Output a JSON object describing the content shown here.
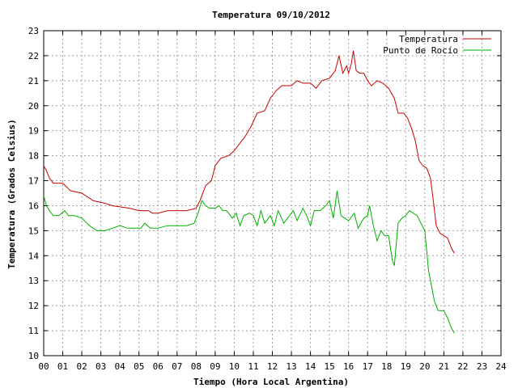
{
  "chart_data": {
    "type": "line",
    "title": "Temperatura 09/10/2012",
    "xlabel": "Tiempo (Hora Local Argentina)",
    "ylabel": "Temperatura (Grados Celsius)",
    "xlim": [
      0,
      24
    ],
    "ylim": [
      10,
      23
    ],
    "x_ticks": [
      "00",
      "01",
      "02",
      "03",
      "04",
      "05",
      "06",
      "07",
      "08",
      "09",
      "10",
      "11",
      "12",
      "13",
      "14",
      "15",
      "16",
      "17",
      "18",
      "19",
      "20",
      "21",
      "22",
      "23",
      "24"
    ],
    "y_ticks": [
      "10",
      "11",
      "12",
      "13",
      "14",
      "15",
      "16",
      "17",
      "18",
      "19",
      "20",
      "21",
      "22",
      "23"
    ],
    "grid": true,
    "legend_position": "top-right",
    "series": [
      {
        "name": "Temperatura",
        "color": "#cc0000",
        "points": [
          [
            0.0,
            17.6
          ],
          [
            0.15,
            17.4
          ],
          [
            0.3,
            17.1
          ],
          [
            0.5,
            16.9
          ],
          [
            1.0,
            16.9
          ],
          [
            1.4,
            16.6
          ],
          [
            2.0,
            16.5
          ],
          [
            2.6,
            16.2
          ],
          [
            3.2,
            16.1
          ],
          [
            3.6,
            16.0
          ],
          [
            4.5,
            15.9
          ],
          [
            5.0,
            15.8
          ],
          [
            5.5,
            15.8
          ],
          [
            5.7,
            15.7
          ],
          [
            6.0,
            15.7
          ],
          [
            6.5,
            15.8
          ],
          [
            7.5,
            15.8
          ],
          [
            8.0,
            15.9
          ],
          [
            8.2,
            16.2
          ],
          [
            8.5,
            16.8
          ],
          [
            8.8,
            17.0
          ],
          [
            9.0,
            17.6
          ],
          [
            9.3,
            17.9
          ],
          [
            9.7,
            18.0
          ],
          [
            10.0,
            18.2
          ],
          [
            10.3,
            18.5
          ],
          [
            10.6,
            18.8
          ],
          [
            10.9,
            19.2
          ],
          [
            11.2,
            19.7
          ],
          [
            11.6,
            19.8
          ],
          [
            11.9,
            20.3
          ],
          [
            12.2,
            20.6
          ],
          [
            12.5,
            20.8
          ],
          [
            13.0,
            20.8
          ],
          [
            13.3,
            21.0
          ],
          [
            13.6,
            20.9
          ],
          [
            14.0,
            20.9
          ],
          [
            14.3,
            20.7
          ],
          [
            14.6,
            21.0
          ],
          [
            15.0,
            21.1
          ],
          [
            15.3,
            21.4
          ],
          [
            15.5,
            22.0
          ],
          [
            15.7,
            21.3
          ],
          [
            15.9,
            21.6
          ],
          [
            16.0,
            21.3
          ],
          [
            16.15,
            21.7
          ],
          [
            16.25,
            22.2
          ],
          [
            16.4,
            21.4
          ],
          [
            16.6,
            21.3
          ],
          [
            16.8,
            21.3
          ],
          [
            17.0,
            21.0
          ],
          [
            17.2,
            20.8
          ],
          [
            17.5,
            21.0
          ],
          [
            17.8,
            20.9
          ],
          [
            18.1,
            20.7
          ],
          [
            18.4,
            20.3
          ],
          [
            18.6,
            19.7
          ],
          [
            18.9,
            19.7
          ],
          [
            19.1,
            19.5
          ],
          [
            19.3,
            19.1
          ],
          [
            19.5,
            18.6
          ],
          [
            19.7,
            17.8
          ],
          [
            19.9,
            17.6
          ],
          [
            20.1,
            17.5
          ],
          [
            20.3,
            17.1
          ],
          [
            20.45,
            16.2
          ],
          [
            20.6,
            15.2
          ],
          [
            20.8,
            14.9
          ],
          [
            21.0,
            14.8
          ],
          [
            21.2,
            14.7
          ],
          [
            21.4,
            14.3
          ],
          [
            21.55,
            14.1
          ]
        ]
      },
      {
        "name": "Punto de Rocío",
        "color": "#00b000",
        "points": [
          [
            0.0,
            16.4
          ],
          [
            0.15,
            16.0
          ],
          [
            0.3,
            15.8
          ],
          [
            0.5,
            15.6
          ],
          [
            0.8,
            15.6
          ],
          [
            1.1,
            15.8
          ],
          [
            1.3,
            15.6
          ],
          [
            1.6,
            15.6
          ],
          [
            2.0,
            15.5
          ],
          [
            2.4,
            15.2
          ],
          [
            2.8,
            15.0
          ],
          [
            3.2,
            15.0
          ],
          [
            3.6,
            15.1
          ],
          [
            4.0,
            15.2
          ],
          [
            4.4,
            15.1
          ],
          [
            4.8,
            15.1
          ],
          [
            5.1,
            15.1
          ],
          [
            5.3,
            15.3
          ],
          [
            5.6,
            15.1
          ],
          [
            6.0,
            15.1
          ],
          [
            6.5,
            15.2
          ],
          [
            7.0,
            15.2
          ],
          [
            7.5,
            15.2
          ],
          [
            7.9,
            15.3
          ],
          [
            8.1,
            15.7
          ],
          [
            8.3,
            16.2
          ],
          [
            8.5,
            16.0
          ],
          [
            8.7,
            15.9
          ],
          [
            9.0,
            15.9
          ],
          [
            9.2,
            16.0
          ],
          [
            9.4,
            15.8
          ],
          [
            9.6,
            15.8
          ],
          [
            9.9,
            15.5
          ],
          [
            10.1,
            15.7
          ],
          [
            10.3,
            15.2
          ],
          [
            10.5,
            15.6
          ],
          [
            10.8,
            15.7
          ],
          [
            11.0,
            15.6
          ],
          [
            11.2,
            15.2
          ],
          [
            11.4,
            15.8
          ],
          [
            11.6,
            15.3
          ],
          [
            11.9,
            15.6
          ],
          [
            12.1,
            15.2
          ],
          [
            12.3,
            15.8
          ],
          [
            12.6,
            15.3
          ],
          [
            12.9,
            15.6
          ],
          [
            13.1,
            15.8
          ],
          [
            13.3,
            15.4
          ],
          [
            13.6,
            15.9
          ],
          [
            13.8,
            15.6
          ],
          [
            14.0,
            15.2
          ],
          [
            14.2,
            15.8
          ],
          [
            14.5,
            15.8
          ],
          [
            14.8,
            16.0
          ],
          [
            15.0,
            16.2
          ],
          [
            15.2,
            15.5
          ],
          [
            15.4,
            16.6
          ],
          [
            15.6,
            15.6
          ],
          [
            15.8,
            15.5
          ],
          [
            16.0,
            15.4
          ],
          [
            16.3,
            15.7
          ],
          [
            16.5,
            15.1
          ],
          [
            16.8,
            15.5
          ],
          [
            17.0,
            15.6
          ],
          [
            17.1,
            16.0
          ],
          [
            17.3,
            15.2
          ],
          [
            17.5,
            14.6
          ],
          [
            17.7,
            15.0
          ],
          [
            17.9,
            14.8
          ],
          [
            18.1,
            14.8
          ],
          [
            18.3,
            13.8
          ],
          [
            18.4,
            13.6
          ],
          [
            18.6,
            15.3
          ],
          [
            18.8,
            15.5
          ],
          [
            19.0,
            15.6
          ],
          [
            19.2,
            15.8
          ],
          [
            19.4,
            15.7
          ],
          [
            19.6,
            15.6
          ],
          [
            19.8,
            15.3
          ],
          [
            20.0,
            15.0
          ],
          [
            20.1,
            14.2
          ],
          [
            20.2,
            13.4
          ],
          [
            20.35,
            12.8
          ],
          [
            20.5,
            12.2
          ],
          [
            20.7,
            11.8
          ],
          [
            21.0,
            11.8
          ],
          [
            21.2,
            11.5
          ],
          [
            21.4,
            11.1
          ],
          [
            21.55,
            10.9
          ]
        ]
      }
    ]
  }
}
